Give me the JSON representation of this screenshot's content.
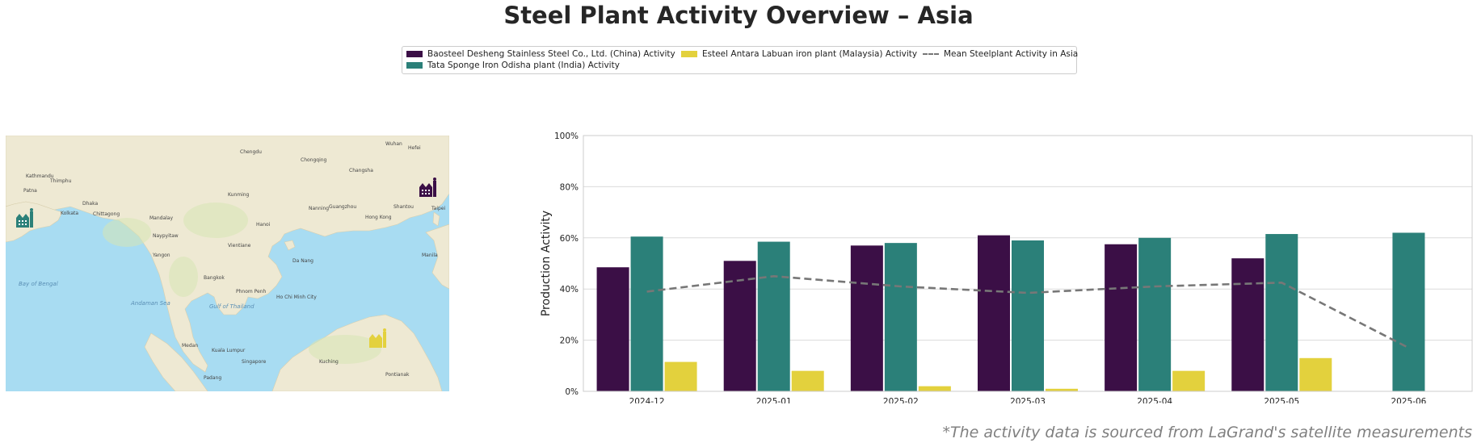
{
  "title": "Steel Plant Activity Overview – Asia",
  "footnote": "*The activity data is sourced from LaGrand's satellite measurements",
  "colors": {
    "baosteel": "#3b0f46",
    "tata": "#2b8079",
    "esteel": "#e3d13d",
    "mean": "#777777",
    "land": "#eee9d3",
    "sea": "#a8dcf2"
  },
  "legend": [
    {
      "label": "Baosteel Desheng Stainless Steel Co., Ltd. (China) Activity",
      "color": "#3b0f46",
      "kind": "bar"
    },
    {
      "label": "Tata Sponge Iron Odisha plant (India) Activity",
      "color": "#2b8079",
      "kind": "bar"
    },
    {
      "label": "Esteel Antara Labuan iron plant (Malaysia) Activity",
      "color": "#e3d13d",
      "kind": "bar"
    },
    {
      "label": "Mean Steelplant Activity in Asia",
      "color": "#777777",
      "kind": "dash"
    }
  ],
  "map": {
    "labels": [
      "Kathmandu",
      "Thimphu",
      "Patna",
      "Dhaka",
      "Kolkata",
      "Chittagong",
      "Mandalay",
      "Naypyitaw",
      "Yangon",
      "Chengdu",
      "Chongqing",
      "Kunming",
      "Guangzhou",
      "Hong Kong",
      "Hanoi",
      "Vientiane",
      "Bangkok",
      "Phnom Penh",
      "Ho Chi Minh City",
      "Da Nang",
      "Manila",
      "Kuching",
      "Pontianak",
      "Singapore",
      "Kuala Lumpur",
      "Medan",
      "Padang",
      "Nanning",
      "Shantou",
      "Changsha",
      "Wuhan",
      "Hefei",
      "Taipei"
    ],
    "sea_labels": [
      "Bay of Bengal",
      "Andaman Sea",
      "Gulf of Thailand"
    ]
  },
  "chart_data": {
    "type": "bar",
    "categories": [
      "2024-12",
      "2025-01",
      "2025-02",
      "2025-03",
      "2025-04",
      "2025-05",
      "2025-06"
    ],
    "series": [
      {
        "name": "Baosteel Desheng Stainless Steel Co., Ltd. (China) Activity",
        "color": "#3b0f46",
        "values": [
          48.5,
          51,
          57,
          61,
          57.5,
          52,
          null
        ]
      },
      {
        "name": "Tata Sponge Iron Odisha plant (India) Activity",
        "color": "#2b8079",
        "values": [
          60.5,
          58.5,
          58,
          59,
          60,
          61.5,
          62
        ]
      },
      {
        "name": "Esteel Antara Labuan iron plant (Malaysia) Activity",
        "color": "#e3d13d",
        "values": [
          11.5,
          8,
          2,
          1,
          8,
          13,
          null
        ]
      }
    ],
    "line": {
      "name": "Mean Steelplant Activity in Asia",
      "color": "#777777",
      "values": [
        39,
        45,
        41,
        38.5,
        41,
        42.5,
        17
      ]
    },
    "ylabel": "Production Activity",
    "xlabel": "",
    "ylim": [
      0,
      100
    ],
    "yticks": [
      "0%",
      "20%",
      "40%",
      "60%",
      "80%",
      "100%"
    ],
    "grid": true
  }
}
